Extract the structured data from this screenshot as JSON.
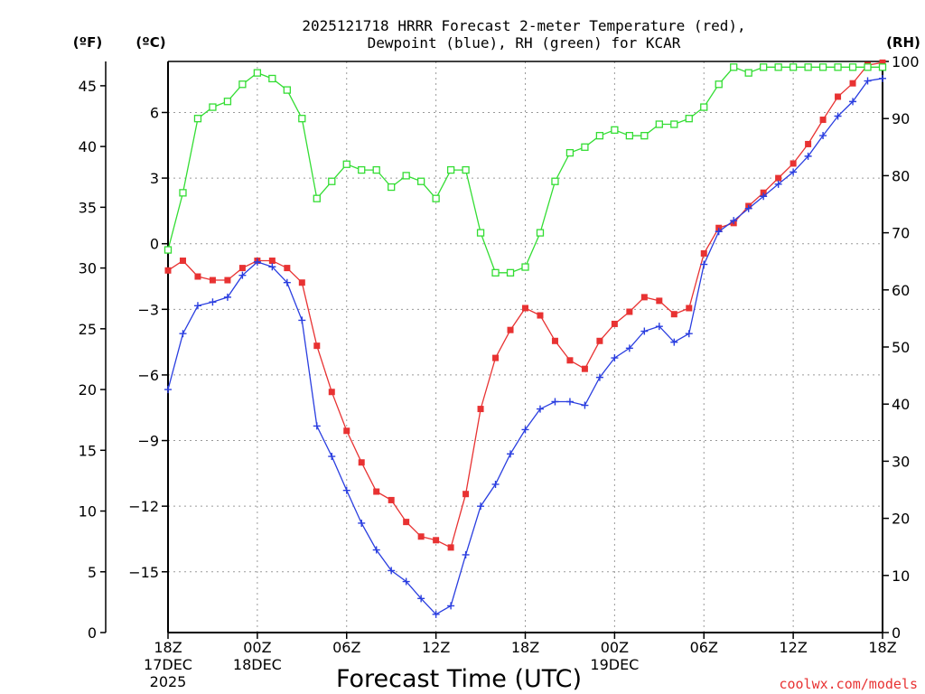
{
  "chart_data": {
    "type": "line",
    "title_line1": "2025121718 HRRR Forecast 2-meter Temperature (red),",
    "title_line2": "Dewpoint (blue), RH (green) for KCAR",
    "xlabel": "Forecast Time (UTC)",
    "unit_left_f": "(ºF)",
    "unit_left_c": "(ºC)",
    "unit_right": "(RH)",
    "credit": "coolwx.com/models",
    "x_range_hours": [
      0,
      48
    ],
    "f_range": [
      0,
      47
    ],
    "c_ticks": [
      6,
      3,
      0,
      -3,
      -6,
      -9,
      -12,
      -15
    ],
    "f_ticks": [
      45,
      40,
      35,
      30,
      25,
      20,
      15,
      10,
      5,
      0
    ],
    "rh_range": [
      0,
      100
    ],
    "rh_ticks": [
      100,
      90,
      80,
      70,
      60,
      50,
      40,
      30,
      20,
      10,
      0
    ],
    "x_ticks": [
      {
        "hour": 0,
        "lines": [
          "18Z",
          "17DEC",
          "2025"
        ]
      },
      {
        "hour": 6,
        "lines": [
          "00Z",
          "18DEC"
        ]
      },
      {
        "hour": 12,
        "lines": [
          "06Z"
        ]
      },
      {
        "hour": 18,
        "lines": [
          "12Z"
        ]
      },
      {
        "hour": 24,
        "lines": [
          "18Z"
        ]
      },
      {
        "hour": 30,
        "lines": [
          "00Z",
          "19DEC"
        ]
      },
      {
        "hour": 36,
        "lines": [
          "06Z"
        ]
      },
      {
        "hour": 42,
        "lines": [
          "12Z"
        ]
      },
      {
        "hour": 48,
        "lines": [
          "18Z"
        ]
      }
    ],
    "grid": true,
    "series": [
      {
        "name": "2-meter Temperature",
        "color": "#e83232",
        "units": "F",
        "marker": "filled-square",
        "values": [
          29.8,
          30.6,
          29.3,
          29.0,
          29.0,
          30.0,
          30.6,
          30.6,
          30.0,
          28.8,
          23.6,
          19.8,
          16.6,
          14.0,
          11.6,
          10.9,
          9.1,
          7.9,
          7.6,
          7.0,
          11.4,
          18.4,
          22.6,
          24.9,
          26.7,
          26.1,
          24.0,
          22.4,
          21.7,
          24.0,
          25.4,
          26.4,
          27.6,
          27.3,
          26.2,
          26.7,
          31.2,
          33.3,
          33.7,
          35.1,
          36.2,
          37.4,
          38.6,
          40.2,
          42.2,
          44.1,
          45.2,
          46.7,
          46.9
        ]
      },
      {
        "name": "Dewpoint",
        "color": "#2a3ee0",
        "units": "F",
        "marker": "plus",
        "values": [
          20.0,
          24.6,
          26.9,
          27.2,
          27.6,
          29.4,
          30.5,
          30.1,
          28.8,
          25.7,
          17.0,
          14.5,
          11.7,
          9.0,
          6.8,
          5.1,
          4.2,
          2.8,
          1.5,
          2.2,
          6.4,
          10.4,
          12.2,
          14.7,
          16.7,
          18.4,
          19.0,
          19.0,
          18.7,
          21.0,
          22.6,
          23.4,
          24.8,
          25.2,
          23.9,
          24.6,
          30.3,
          33.0,
          33.9,
          34.9,
          35.9,
          36.9,
          37.9,
          39.2,
          40.9,
          42.5,
          43.7,
          45.4,
          45.6
        ]
      },
      {
        "name": "RH",
        "color": "#33dd33",
        "units": "%",
        "marker": "open-square",
        "values": [
          67,
          77,
          90,
          92,
          93,
          96,
          98,
          97,
          95,
          90,
          76,
          79,
          82,
          81,
          81,
          78,
          80,
          79,
          76,
          81,
          81,
          70,
          63,
          63,
          64,
          70,
          79,
          84,
          85,
          87,
          88,
          87,
          87,
          89,
          89,
          90,
          92,
          96,
          99,
          98,
          99,
          99,
          99,
          99,
          99,
          99,
          99,
          99,
          99
        ]
      }
    ]
  }
}
